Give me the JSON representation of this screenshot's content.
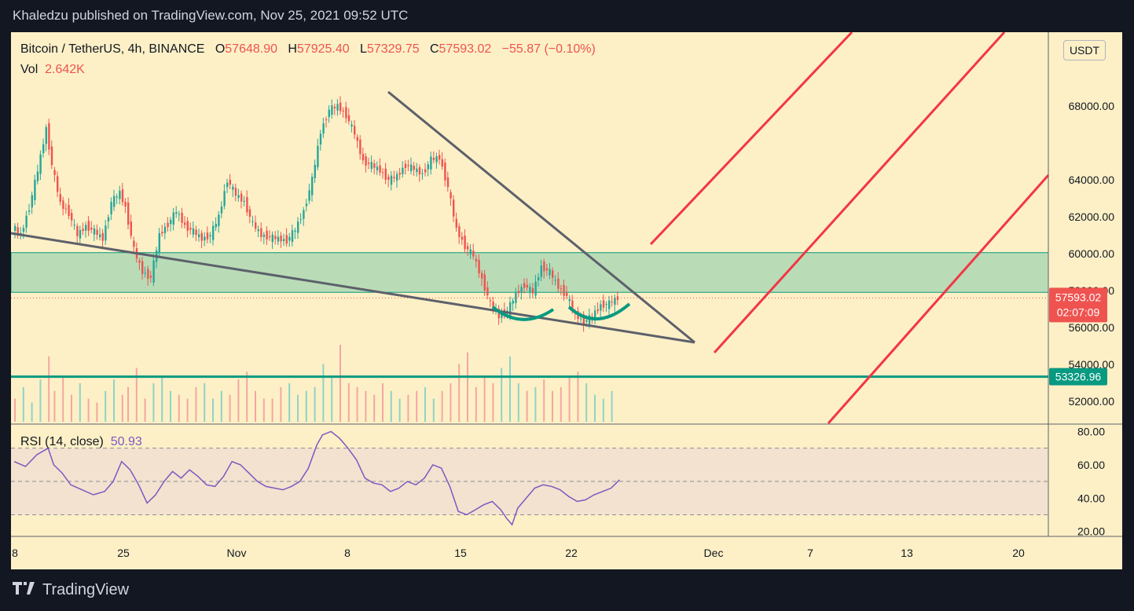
{
  "header": {
    "published": "Khaledzu published on TradingView.com, Nov 25, 2021 09:52 UTC"
  },
  "legend": {
    "symbol": "Bitcoin / TetherUS, 4h, BINANCE",
    "o_label": "O",
    "o": "57648.90",
    "h_label": "H",
    "h": "57925.40",
    "l_label": "L",
    "l": "57329.75",
    "c_label": "C",
    "c": "57593.02",
    "change": "−55.87 (−0.10%)",
    "vol_label": "Vol",
    "vol": "2.642K"
  },
  "rsi_legend": {
    "label": "RSI (14, close)",
    "value": "50.93"
  },
  "currency_button": "USDT",
  "footer": {
    "brand": "TradingView"
  },
  "colors": {
    "background": "#fdf0c6",
    "up": "#26a69a",
    "down": "#ef5350",
    "trendline": "#5d606b",
    "channel": "#f23645",
    "zone": "#b9dcb6",
    "support": "#089981",
    "rsi": "#7e57c2"
  },
  "chart_data": [
    {
      "type": "candlestick",
      "title": "Bitcoin / TetherUS, 4h, BINANCE",
      "y_ticks": [
        "68000.00",
        "64000.00",
        "62000.00",
        "60000.00",
        "58000.00",
        "56000.00",
        "54000.00",
        "52000.00"
      ],
      "x_ticks": [
        "8",
        "25",
        "Nov",
        "8",
        "15",
        "22",
        "Dec",
        "7",
        "13",
        "20"
      ],
      "ylim": [
        50800,
        72000
      ],
      "last_price": "57593.02",
      "countdown": "02:07:09",
      "support_level": "53326.96",
      "resistance_zone": [
        57900,
        60050
      ],
      "price_path": [
        [
          0,
          61500
        ],
        [
          3,
          61000
        ],
        [
          6,
          62500
        ],
        [
          9,
          64500
        ],
        [
          12,
          66800
        ],
        [
          14,
          64800
        ],
        [
          17,
          62700
        ],
        [
          20,
          62200
        ],
        [
          23,
          61000
        ],
        [
          26,
          61500
        ],
        [
          29,
          61200
        ],
        [
          32,
          60800
        ],
        [
          35,
          62800
        ],
        [
          38,
          63300
        ],
        [
          40,
          62500
        ],
        [
          43,
          60200
        ],
        [
          46,
          59000
        ],
        [
          49,
          58700
        ],
        [
          52,
          61000
        ],
        [
          55,
          61600
        ],
        [
          58,
          62300
        ],
        [
          61,
          61500
        ],
        [
          64,
          61200
        ],
        [
          67,
          60800
        ],
        [
          70,
          61000
        ],
        [
          73,
          62000
        ],
        [
          76,
          64000
        ],
        [
          79,
          63200
        ],
        [
          82,
          62800
        ],
        [
          85,
          61600
        ],
        [
          88,
          61000
        ],
        [
          91,
          60900
        ],
        [
          94,
          60800
        ],
        [
          97,
          60700
        ],
        [
          100,
          61300
        ],
        [
          103,
          62300
        ],
        [
          106,
          64000
        ],
        [
          109,
          66600
        ],
        [
          112,
          67800
        ],
        [
          115,
          68000
        ],
        [
          118,
          67500
        ],
        [
          121,
          66500
        ],
        [
          124,
          65000
        ],
        [
          127,
          64800
        ],
        [
          130,
          64500
        ],
        [
          133,
          64000
        ],
        [
          136,
          64200
        ],
        [
          139,
          64800
        ],
        [
          142,
          64600
        ],
        [
          145,
          64300
        ],
        [
          148,
          65100
        ],
        [
          151,
          65200
        ],
        [
          154,
          63600
        ],
        [
          157,
          61300
        ],
        [
          160,
          60400
        ],
        [
          163,
          59900
        ],
        [
          166,
          58600
        ],
        [
          169,
          57300
        ],
        [
          172,
          56600
        ],
        [
          175,
          56900
        ],
        [
          178,
          57800
        ],
        [
          181,
          58300
        ],
        [
          184,
          57900
        ],
        [
          187,
          59300
        ],
        [
          190,
          59000
        ],
        [
          193,
          58200
        ],
        [
          196,
          57700
        ],
        [
          199,
          56700
        ],
        [
          202,
          56300
        ],
        [
          205,
          56600
        ],
        [
          208,
          57200
        ],
        [
          211,
          57300
        ],
        [
          214,
          57600
        ]
      ],
      "volume_relative": [
        0.3,
        0.45,
        0.25,
        0.55,
        0.85,
        0.4,
        0.6,
        0.35,
        0.5,
        0.3,
        0.25,
        0.4,
        0.55,
        0.35,
        0.45,
        0.7,
        0.3,
        0.5,
        0.6,
        0.4,
        0.35,
        0.3,
        0.45,
        0.5,
        0.3,
        0.4,
        0.35,
        0.55,
        0.65,
        0.4,
        0.3,
        0.3,
        0.45,
        0.5,
        0.35,
        0.4,
        0.45,
        0.75,
        0.6,
        1.0,
        0.5,
        0.45,
        0.4,
        0.35,
        0.5,
        0.4,
        0.3,
        0.35,
        0.4,
        0.45,
        0.3,
        0.4,
        0.5,
        0.75,
        0.9,
        0.45,
        0.6,
        0.5,
        0.7,
        0.85,
        0.5,
        0.4,
        0.45,
        0.55,
        0.4,
        0.45,
        0.6,
        0.65,
        0.5,
        0.35,
        0.3,
        0.4
      ]
    },
    {
      "type": "line",
      "title": "RSI (14, close)",
      "y_ticks": [
        "80.00",
        "60.00",
        "40.00",
        "20.00"
      ],
      "ylim": [
        17,
        84
      ],
      "band": [
        30,
        70
      ],
      "midline": 50,
      "values": [
        [
          0,
          62
        ],
        [
          4,
          59
        ],
        [
          8,
          66
        ],
        [
          12,
          70
        ],
        [
          14,
          60
        ],
        [
          17,
          55
        ],
        [
          20,
          48
        ],
        [
          24,
          45
        ],
        [
          28,
          42
        ],
        [
          32,
          44
        ],
        [
          35,
          50
        ],
        [
          38,
          62
        ],
        [
          41,
          57
        ],
        [
          44,
          48
        ],
        [
          47,
          37
        ],
        [
          50,
          42
        ],
        [
          53,
          50
        ],
        [
          56,
          56
        ],
        [
          59,
          52
        ],
        [
          62,
          57
        ],
        [
          65,
          53
        ],
        [
          68,
          48
        ],
        [
          71,
          47
        ],
        [
          74,
          53
        ],
        [
          77,
          62
        ],
        [
          80,
          60
        ],
        [
          83,
          55
        ],
        [
          86,
          50
        ],
        [
          89,
          47
        ],
        [
          92,
          46
        ],
        [
          95,
          45
        ],
        [
          98,
          47
        ],
        [
          101,
          50
        ],
        [
          104,
          58
        ],
        [
          107,
          72
        ],
        [
          109,
          78
        ],
        [
          112,
          80
        ],
        [
          115,
          76
        ],
        [
          118,
          70
        ],
        [
          121,
          63
        ],
        [
          124,
          52
        ],
        [
          127,
          49
        ],
        [
          130,
          48
        ],
        [
          133,
          44
        ],
        [
          136,
          46
        ],
        [
          139,
          50
        ],
        [
          142,
          48
        ],
        [
          145,
          52
        ],
        [
          148,
          60
        ],
        [
          151,
          58
        ],
        [
          154,
          47
        ],
        [
          157,
          32
        ],
        [
          160,
          30
        ],
        [
          163,
          33
        ],
        [
          166,
          36
        ],
        [
          169,
          38
        ],
        [
          172,
          33
        ],
        [
          174,
          28
        ],
        [
          176,
          24
        ],
        [
          178,
          34
        ],
        [
          181,
          40
        ],
        [
          184,
          46
        ],
        [
          187,
          48
        ],
        [
          190,
          47
        ],
        [
          193,
          45
        ],
        [
          196,
          41
        ],
        [
          199,
          38
        ],
        [
          202,
          39
        ],
        [
          205,
          42
        ],
        [
          208,
          44
        ],
        [
          211,
          46
        ],
        [
          214,
          51
        ]
      ]
    }
  ]
}
